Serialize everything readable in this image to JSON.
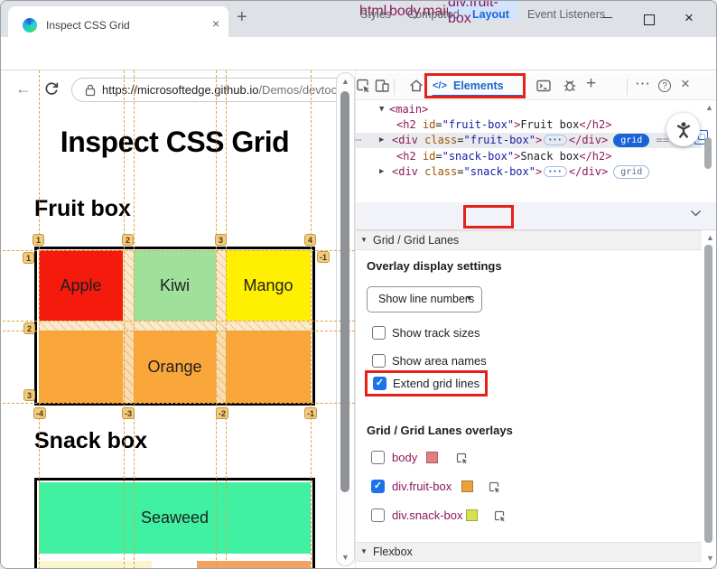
{
  "colors": {
    "annotation_red": "#e62117",
    "accent_blue": "#1a63d4",
    "grid_overlay_orange": "#e2a23b",
    "selected_dom_row_bg": "#e9eaed",
    "active_crumb_bg": "#d2e3fb"
  },
  "browser": {
    "tab_title": "Inspect CSS Grid",
    "tab_close_icon": "×",
    "new_tab_icon": "+",
    "window_minimize_icon": "—",
    "window_close_icon": "×",
    "back_icon": "←",
    "more_icon": "⋯",
    "url_scheme_host": "https://microsoftedge.github.io",
    "url_path": "/Demos/devtools-grid/"
  },
  "page": {
    "title": "Inspect CSS Grid",
    "fruit_heading": "Fruit box",
    "snack_heading": "Snack box",
    "cells": {
      "apple": {
        "label": "Apple",
        "color": "#f41a0c"
      },
      "kiwi": {
        "label": "Kiwi",
        "color": "#9fe09a"
      },
      "mango": {
        "label": "Mango",
        "color": "#ffef00"
      },
      "orange": {
        "label": "Orange",
        "color": "#f9a63b"
      },
      "seaweed": {
        "label": "Seaweed",
        "color": "#41f1a2"
      },
      "partial_left": {
        "color": "#fbf5cd"
      },
      "partial_right": {
        "color": "#f2a263"
      }
    },
    "overlay": {
      "top": [
        "1",
        "2",
        "3",
        "4"
      ],
      "bottom": [
        "-4",
        "-3",
        "-2",
        "-1"
      ],
      "left": [
        "1",
        "2",
        "3"
      ],
      "right": [
        "-1"
      ]
    }
  },
  "devtools": {
    "toolbar": {
      "elements_icon": "</>",
      "elements_label": "Elements",
      "add_icon": "+",
      "more_icon": "⋯",
      "help_icon": "?",
      "close_icon": "×"
    },
    "dom": {
      "rows": [
        {
          "arrow": "▼",
          "tokens": [
            [
              "tag",
              "<main>"
            ]
          ]
        },
        {
          "tokens": [
            [
              "tag",
              "<h2"
            ],
            [
              "attr",
              " id"
            ],
            [
              "pun",
              "="
            ],
            [
              "val",
              "\"fruit-box\""
            ],
            [
              "tag",
              ">"
            ],
            [
              "txt",
              "Fruit box"
            ],
            [
              "tag",
              "</h2>"
            ]
          ]
        },
        {
          "arrow": "▶",
          "left_dots": "⋯",
          "selected": true,
          "tokens": [
            [
              "tag",
              "<div"
            ],
            [
              "attr",
              " class"
            ],
            [
              "pun",
              "="
            ],
            [
              "val",
              "\"fruit-box\""
            ],
            [
              "tag",
              ">"
            ],
            [
              "more",
              "•••"
            ],
            [
              "tag",
              "</div>"
            ],
            [
              "grid-solid",
              "grid"
            ],
            [
              "dim",
              " == "
            ],
            [
              "dim-i",
              "$0"
            ],
            [
              "reveal",
              ""
            ]
          ]
        },
        {
          "tokens": [
            [
              "tag",
              "<h2"
            ],
            [
              "attr",
              " id"
            ],
            [
              "pun",
              "="
            ],
            [
              "val",
              "\"snack-box\""
            ],
            [
              "tag",
              ">"
            ],
            [
              "txt",
              "Snack box"
            ],
            [
              "tag",
              "</h2>"
            ]
          ]
        },
        {
          "arrow": "▶",
          "tokens": [
            [
              "tag",
              "<div"
            ],
            [
              "attr",
              " class"
            ],
            [
              "pun",
              "="
            ],
            [
              "val",
              "\"snack-box\""
            ],
            [
              "tag",
              ">"
            ],
            [
              "more",
              "•••"
            ],
            [
              "tag",
              "</div>"
            ],
            [
              "grid-outline",
              "grid"
            ]
          ]
        }
      ]
    },
    "crumbs": [
      "html",
      "body",
      "main",
      "div.fruit-box"
    ],
    "tabs": [
      "Styles",
      "Computed",
      "Layout",
      "Event Listeners"
    ],
    "layout_pane": {
      "grid_section_title": "Grid / Grid Lanes",
      "overlay_settings_title": "Overlay display settings",
      "dropdown_value": "Show line numbers",
      "checkboxes": [
        {
          "label": "Show track sizes",
          "checked": false
        },
        {
          "label": "Show area names",
          "checked": false
        },
        {
          "label": "Extend grid lines",
          "checked": true
        }
      ],
      "overlays_title": "Grid / Grid Lanes overlays",
      "overlays": [
        {
          "label": "body",
          "checked": false,
          "swatch": "#e08086"
        },
        {
          "label": "div.fruit-box",
          "checked": true,
          "swatch": "#e8a33d"
        },
        {
          "label": "div.snack-box",
          "checked": false,
          "swatch": "#d7e14c"
        }
      ],
      "flexbox_section_title": "Flexbox"
    }
  }
}
